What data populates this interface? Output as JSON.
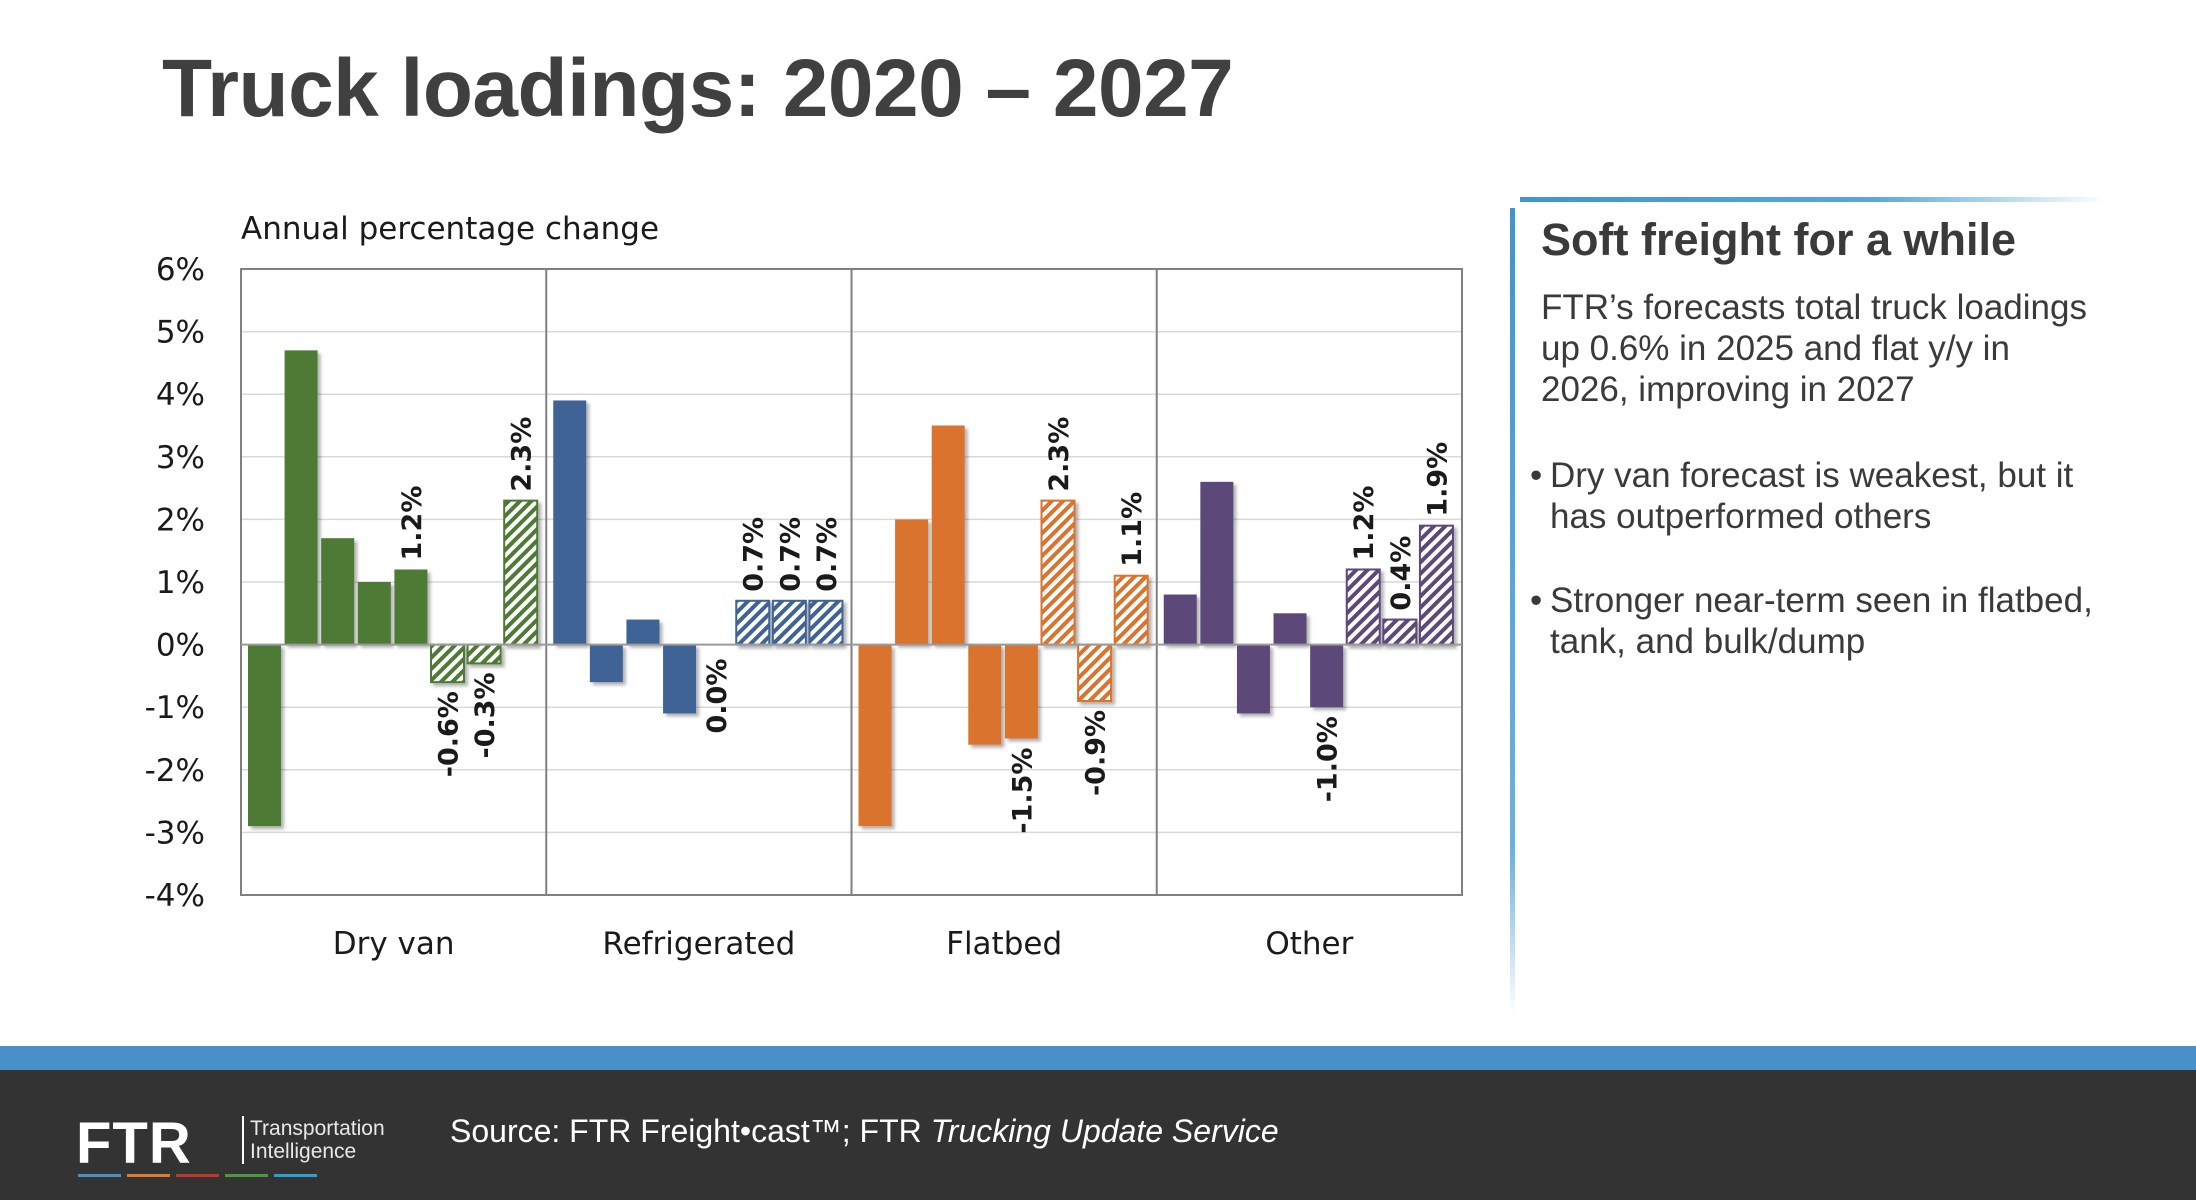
{
  "title": "Truck loadings: 2020 – 2027",
  "chart_data": {
    "type": "bar",
    "ylabel": "Annual percentage change",
    "ylim": [
      -4,
      6
    ],
    "yticks": [
      6,
      5,
      4,
      3,
      2,
      1,
      0,
      -1,
      -2,
      -3,
      -4
    ],
    "ytick_labels": [
      "6%",
      "5%",
      "4%",
      "3%",
      "2%",
      "1%",
      "0%",
      "-1%",
      "-2%",
      "-3%",
      "-4%"
    ],
    "grid": true,
    "hatched_from_index": 5,
    "groups": [
      {
        "name": "Dry van",
        "color": "#4d7a35",
        "values": [
          -2.9,
          4.7,
          1.7,
          1.0,
          1.2,
          -0.6,
          -0.3,
          2.3
        ],
        "labels": [
          "",
          "",
          "",
          "",
          "1.2%",
          "-0.6%",
          "-0.3%",
          "2.3%"
        ]
      },
      {
        "name": "Refrigerated",
        "color": "#3f6496",
        "values": [
          3.9,
          -0.6,
          0.4,
          -1.1,
          0.0,
          0.7,
          0.7,
          0.7
        ],
        "labels": [
          "",
          "",
          "",
          "",
          "0.0%",
          "0.7%",
          "0.7%",
          "0.7%"
        ]
      },
      {
        "name": "Flatbed",
        "color": "#d9732e",
        "values": [
          -2.9,
          2.0,
          3.5,
          -1.6,
          -1.5,
          2.3,
          -0.9,
          1.1
        ],
        "labels": [
          "",
          "",
          "",
          "",
          "-1.5%",
          "2.3%",
          "-0.9%",
          "1.1%"
        ]
      },
      {
        "name": "Other",
        "color": "#5c4a7a",
        "values": [
          0.8,
          2.6,
          -1.1,
          0.5,
          -1.0,
          1.2,
          0.4,
          1.9
        ],
        "labels": [
          "",
          "",
          "",
          "",
          "-1.0%",
          "1.2%",
          "0.4%",
          "1.9%"
        ]
      }
    ]
  },
  "sidebar": {
    "heading": "Soft freight for a while",
    "paragraph": "FTR’s forecasts total truck loadings up 0.6% in 2025 and flat y/y in 2026, improving in 2027",
    "bullets": [
      "Dry van forecast is weakest, but it has outperformed others",
      "Stronger near-term  seen in flatbed, tank, and bulk/dump"
    ]
  },
  "footer": {
    "logo_text": "FTR",
    "logo_tagline_1": "Transportation",
    "logo_tagline_2": "Intelligence",
    "logo_colors": [
      "#4a90c8",
      "#e07b2a",
      "#c0392b",
      "#4d9a3c",
      "#2a9fd6"
    ],
    "source_prefix": "Source: FTR Freight•cast™; FTR ",
    "source_italic": "Trucking Update Service"
  }
}
